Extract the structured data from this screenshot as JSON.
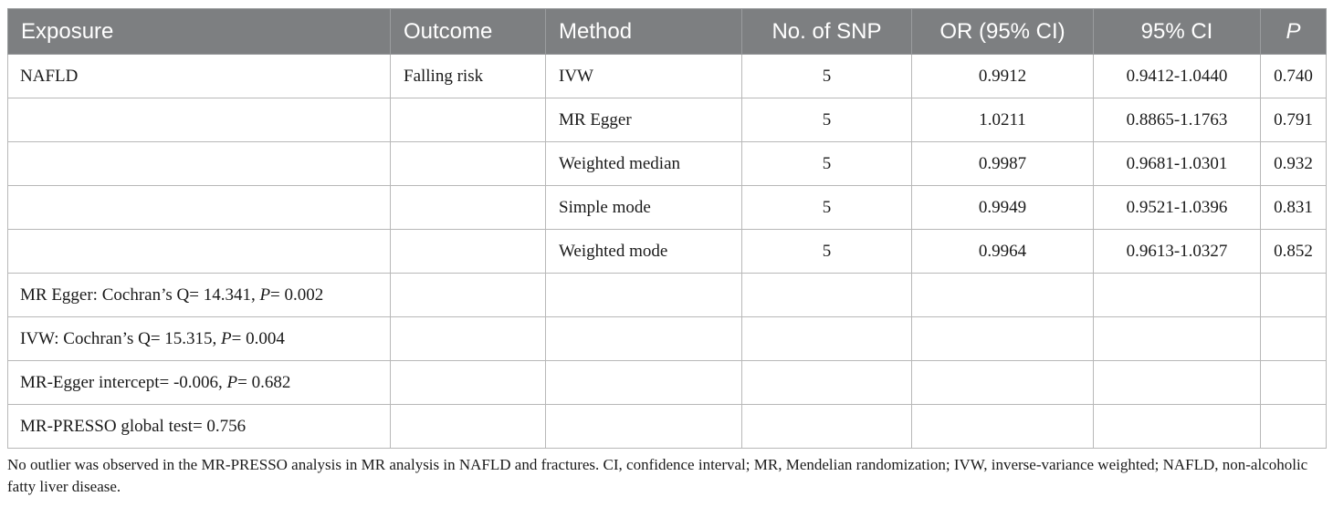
{
  "header": [
    "Exposure",
    "Outcome",
    "Method",
    "No. of SNP",
    "OR (95% CI)",
    "95% CI",
    "P"
  ],
  "rows": [
    {
      "exposure": "NAFLD",
      "outcome": "Falling risk",
      "method": "IVW",
      "snp": "5",
      "or": "0.9912",
      "ci": "0.9412-1.0440",
      "p": "0.740"
    },
    {
      "exposure": "",
      "outcome": "",
      "method": "MR Egger",
      "snp": "5",
      "or": "1.0211",
      "ci": "0.8865-1.1763",
      "p": "0.791"
    },
    {
      "exposure": "",
      "outcome": "",
      "method": "Weighted median",
      "snp": "5",
      "or": "0.9987",
      "ci": "0.9681-1.0301",
      "p": "0.932"
    },
    {
      "exposure": "",
      "outcome": "",
      "method": "Simple mode",
      "snp": "5",
      "or": "0.9949",
      "ci": "0.9521-1.0396",
      "p": "0.831"
    },
    {
      "exposure": "",
      "outcome": "",
      "method": "Weighted mode",
      "snp": "5",
      "or": "0.9964",
      "ci": "0.9613-1.0327",
      "p": "0.852"
    }
  ],
  "stats": [
    {
      "text": "MR Egger: Cochran’s Q= 14.341, ",
      "p_label": "P",
      "p_value": "= 0.002"
    },
    {
      "text": "IVW: Cochran’s Q= 15.315, ",
      "p_label": "P",
      "p_value": "= 0.004"
    },
    {
      "text": "MR-Egger intercept= -0.006, ",
      "p_label": "P",
      "p_value": "= 0.682"
    },
    {
      "text": "MR-PRESSO global test= 0.756",
      "p_label": "",
      "p_value": ""
    }
  ],
  "footnote": "No outlier was observed in the MR-PRESSO analysis in MR analysis in NAFLD and fractures. CI, confidence interval; MR, Mendelian randomization; IVW, inverse-variance weighted; NAFLD, non-alcoholic fatty liver disease."
}
